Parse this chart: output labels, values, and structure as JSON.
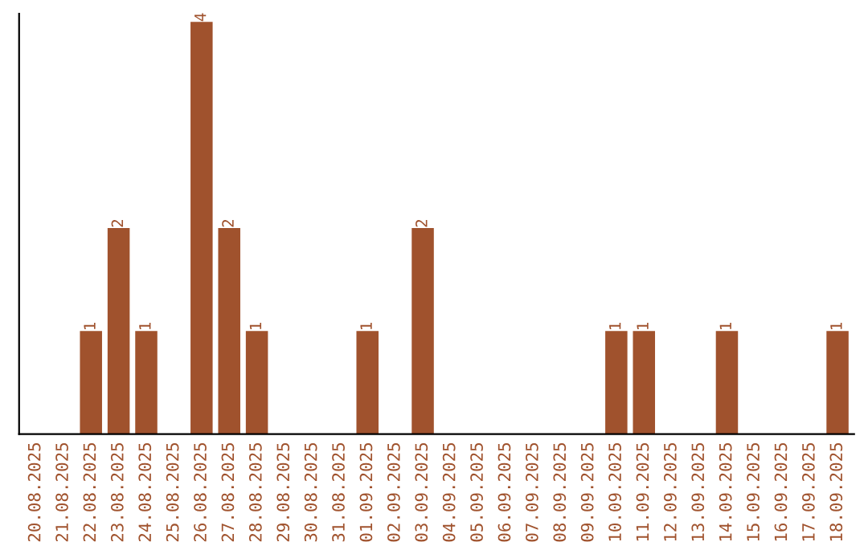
{
  "chart_data": {
    "type": "bar",
    "categories": [
      "20.08.2025",
      "21.08.2025",
      "22.08.2025",
      "23.08.2025",
      "24.08.2025",
      "25.08.2025",
      "26.08.2025",
      "27.08.2025",
      "28.08.2025",
      "29.08.2025",
      "30.08.2025",
      "31.08.2025",
      "01.09.2025",
      "02.09.2025",
      "03.09.2025",
      "04.09.2025",
      "05.09.2025",
      "06.09.2025",
      "07.09.2025",
      "08.09.2025",
      "09.09.2025",
      "10.09.2025",
      "11.09.2025",
      "12.09.2025",
      "13.09.2025",
      "14.09.2025",
      "15.09.2025",
      "16.09.2025",
      "17.09.2025",
      "18.09.2025"
    ],
    "values": [
      0,
      0,
      1,
      2,
      1,
      0,
      4,
      2,
      1,
      0,
      0,
      0,
      1,
      0,
      2,
      0,
      0,
      0,
      0,
      0,
      0,
      1,
      1,
      0,
      0,
      1,
      0,
      0,
      0,
      1
    ],
    "value_labels": [
      null,
      null,
      "1",
      "2",
      "1",
      null,
      "4",
      "2",
      "1",
      null,
      null,
      null,
      "1",
      null,
      "2",
      null,
      null,
      null,
      null,
      null,
      null,
      "1",
      "1",
      null,
      null,
      "1",
      null,
      null,
      null,
      "1"
    ],
    "color": "#a0522d",
    "tick_labels": "x",
    "grid": false,
    "legend": false
  }
}
